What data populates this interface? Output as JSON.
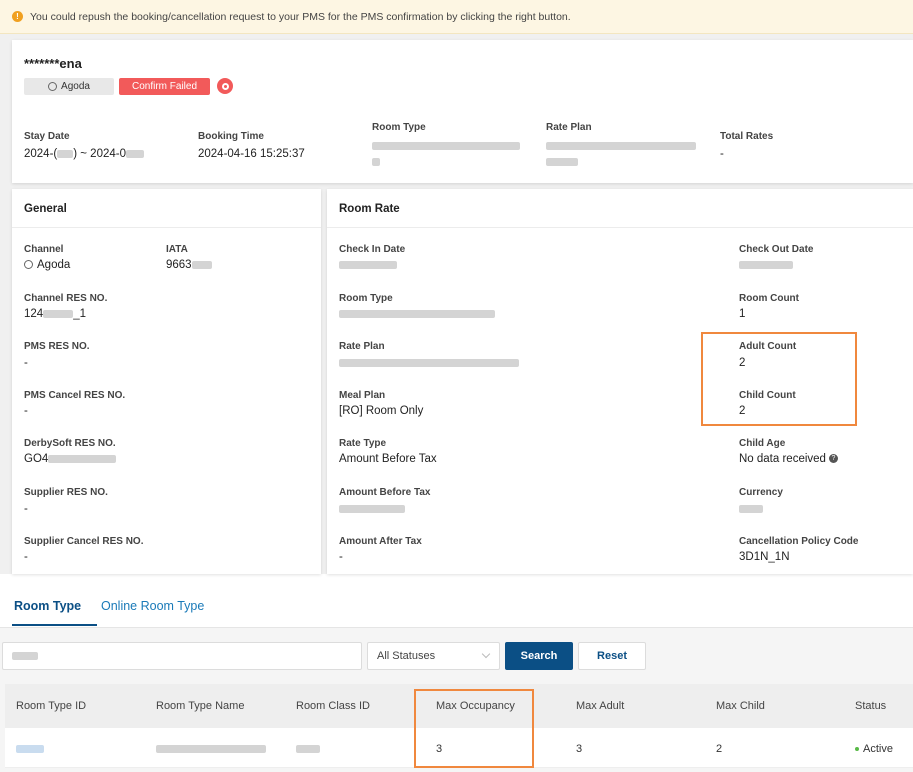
{
  "notice": {
    "text": "You could repush the booking/cancellation request to your PMS for the PMS confirmation by clicking the right button."
  },
  "booking": {
    "guest_name": "*******ena",
    "channel_chip": "Agoda",
    "status_badge": "Confirm Failed",
    "fields": {
      "stay_date_label": "Stay Date",
      "stay_date_value_a": "2024-(",
      "stay_date_value_b": ") ~ 2024-0",
      "booking_time_label": "Booking Time",
      "booking_time_value": "2024-04-16 15:25:37",
      "room_type_label": "Room Type",
      "rate_plan_label": "Rate Plan",
      "total_rates_label": "Total Rates",
      "total_rates_value": "-"
    }
  },
  "general": {
    "title": "General",
    "channel_label": "Channel",
    "channel_value": "Agoda",
    "iata_label": "IATA",
    "iata_value": "9663",
    "channel_res_label": "Channel RES NO.",
    "channel_res_value_a": "124",
    "channel_res_value_b": "_1",
    "pms_res_label": "PMS RES NO.",
    "pms_res_value": "-",
    "pms_cancel_label": "PMS Cancel RES NO.",
    "pms_cancel_value": "-",
    "derbysoft_label": "DerbySoft RES NO.",
    "derbysoft_value": "GO4",
    "supplier_res_label": "Supplier RES NO.",
    "supplier_res_value": "-",
    "supplier_cancel_label": "Supplier Cancel RES NO.",
    "supplier_cancel_value": "-"
  },
  "room_rate": {
    "title": "Room Rate",
    "check_in_label": "Check In Date",
    "check_out_label": "Check Out Date",
    "room_type_label": "Room Type",
    "room_count_label": "Room Count",
    "room_count_value": "1",
    "rate_plan_label": "Rate Plan",
    "adult_count_label": "Adult Count",
    "adult_count_value": "2",
    "meal_plan_label": "Meal Plan",
    "meal_plan_value": "[RO] Room Only",
    "child_count_label": "Child Count",
    "child_count_value": "2",
    "rate_type_label": "Rate Type",
    "rate_type_value": "Amount Before Tax",
    "child_age_label": "Child Age",
    "child_age_value": "No data received",
    "amount_before_tax_label": "Amount Before Tax",
    "currency_label": "Currency",
    "amount_after_tax_label": "Amount After Tax",
    "amount_after_tax_value": "-",
    "cancel_policy_label": "Cancellation Policy Code",
    "cancel_policy_value": "3D1N_1N"
  },
  "tabs": [
    {
      "label": "Room Type",
      "active": true
    },
    {
      "label": "Online Room Type",
      "active": false
    }
  ],
  "filter": {
    "status_selected": "All Statuses",
    "search_label": "Search",
    "reset_label": "Reset"
  },
  "table": {
    "columns": [
      "Room Type ID",
      "Room Type Name",
      "Room Class ID",
      "Max Occupancy",
      "Max Adult",
      "Max Child",
      "Status"
    ],
    "rows": [
      {
        "max_occupancy": "3",
        "max_adult": "3",
        "max_child": "2",
        "status": "Active"
      }
    ]
  },
  "colors": {
    "accent": "#0b4f85",
    "link": "#1a7ab8",
    "danger": "#f25a5a",
    "highlight": "#f0883e",
    "active_status": "#58b947"
  }
}
